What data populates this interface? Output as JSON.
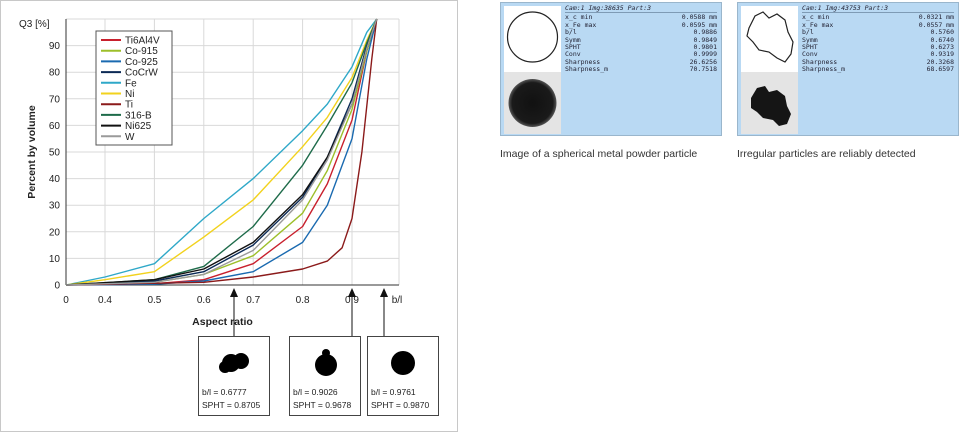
{
  "chart_data": {
    "type": "line",
    "title": "",
    "ylabel": "Percent by volume",
    "y_unit": "Q3 [%]",
    "xlabel": "Aspect ratio",
    "x_end_label": "b/l",
    "xlim": [
      0,
      0.95
    ],
    "ylim": [
      0,
      100
    ],
    "xticks": [
      "0",
      "0.4",
      "0.5",
      "0.6",
      "0.7",
      "0.8",
      "0.9"
    ],
    "yticks": [
      "0",
      "10",
      "20",
      "30",
      "40",
      "50",
      "60",
      "70",
      "80",
      "90"
    ],
    "grid": true,
    "legend_position": "top-left",
    "series": [
      {
        "name": "Ti6Al4V",
        "color": "#c8202d",
        "points": [
          [
            0,
            0
          ],
          [
            0.5,
            0.5
          ],
          [
            0.6,
            2
          ],
          [
            0.7,
            8
          ],
          [
            0.8,
            22
          ],
          [
            0.85,
            38
          ],
          [
            0.9,
            62
          ],
          [
            0.93,
            88
          ],
          [
            0.95,
            100
          ]
        ]
      },
      {
        "name": "Co-915",
        "color": "#9dbf2a",
        "points": [
          [
            0,
            0
          ],
          [
            0.5,
            1
          ],
          [
            0.6,
            4
          ],
          [
            0.7,
            11
          ],
          [
            0.8,
            27
          ],
          [
            0.85,
            43
          ],
          [
            0.9,
            66
          ],
          [
            0.93,
            88
          ],
          [
            0.95,
            100
          ]
        ]
      },
      {
        "name": "Co-925",
        "color": "#1a6ab0",
        "points": [
          [
            0,
            0
          ],
          [
            0.5,
            0.3
          ],
          [
            0.6,
            1.5
          ],
          [
            0.7,
            5
          ],
          [
            0.8,
            16
          ],
          [
            0.85,
            30
          ],
          [
            0.9,
            55
          ],
          [
            0.93,
            85
          ],
          [
            0.95,
            100
          ]
        ]
      },
      {
        "name": "CoCrW",
        "color": "#0c2a55",
        "points": [
          [
            0,
            0
          ],
          [
            0.5,
            1.5
          ],
          [
            0.6,
            5
          ],
          [
            0.7,
            15
          ],
          [
            0.8,
            33
          ],
          [
            0.85,
            48
          ],
          [
            0.9,
            70
          ],
          [
            0.93,
            90
          ],
          [
            0.95,
            100
          ]
        ]
      },
      {
        "name": "Fe",
        "color": "#2fa8c8",
        "points": [
          [
            0,
            0
          ],
          [
            0.4,
            3
          ],
          [
            0.5,
            8
          ],
          [
            0.6,
            25
          ],
          [
            0.7,
            40
          ],
          [
            0.8,
            58
          ],
          [
            0.85,
            68
          ],
          [
            0.9,
            82
          ],
          [
            0.93,
            95
          ],
          [
            0.95,
            100
          ]
        ]
      },
      {
        "name": "Ni",
        "color": "#f2d21d",
        "points": [
          [
            0,
            0
          ],
          [
            0.4,
            2
          ],
          [
            0.5,
            5
          ],
          [
            0.6,
            18
          ],
          [
            0.7,
            32
          ],
          [
            0.8,
            52
          ],
          [
            0.85,
            63
          ],
          [
            0.9,
            78
          ],
          [
            0.93,
            92
          ],
          [
            0.95,
            100
          ]
        ]
      },
      {
        "name": "Ti",
        "color": "#8b1a1a",
        "points": [
          [
            0,
            0
          ],
          [
            0.6,
            1
          ],
          [
            0.7,
            3
          ],
          [
            0.8,
            6
          ],
          [
            0.85,
            9
          ],
          [
            0.88,
            14
          ],
          [
            0.9,
            25
          ],
          [
            0.92,
            50
          ],
          [
            0.94,
            85
          ],
          [
            0.95,
            100
          ]
        ]
      },
      {
        "name": "316-B",
        "color": "#1e6b4a",
        "points": [
          [
            0,
            0
          ],
          [
            0.5,
            2
          ],
          [
            0.6,
            7
          ],
          [
            0.7,
            22
          ],
          [
            0.8,
            45
          ],
          [
            0.85,
            60
          ],
          [
            0.9,
            76
          ],
          [
            0.93,
            91
          ],
          [
            0.95,
            100
          ]
        ]
      },
      {
        "name": "Ni625",
        "color": "#111111",
        "points": [
          [
            0,
            0
          ],
          [
            0.5,
            2
          ],
          [
            0.6,
            6
          ],
          [
            0.7,
            16
          ],
          [
            0.8,
            34
          ],
          [
            0.85,
            48
          ],
          [
            0.9,
            68
          ],
          [
            0.93,
            89
          ],
          [
            0.95,
            100
          ]
        ]
      },
      {
        "name": "W",
        "color": "#9a9a9a",
        "points": [
          [
            0,
            0
          ],
          [
            0.5,
            1
          ],
          [
            0.6,
            4
          ],
          [
            0.7,
            13
          ],
          [
            0.8,
            32
          ],
          [
            0.85,
            47
          ],
          [
            0.9,
            68
          ],
          [
            0.93,
            89
          ],
          [
            0.95,
            100
          ]
        ]
      }
    ],
    "annotations": [
      {
        "x": 0.677,
        "lines": [
          "b/l = 0.6777",
          "SPHT = 0.8705"
        ]
      },
      {
        "x": 0.9026,
        "lines": [
          "b/l = 0.9026",
          "SPHT = 0.9678"
        ]
      },
      {
        "x": 0.9761,
        "lines": [
          "b/l = 0.9761",
          "SPHT = 0.9870"
        ]
      }
    ]
  },
  "panels": [
    {
      "header": "Cam:1 Img:38635 Part:3",
      "rows": [
        [
          "x_c min",
          "0.0588 mm"
        ],
        [
          "x_Fe max",
          "0.0595 mm"
        ],
        [
          "b/l",
          "0.9886"
        ],
        [
          "Symm",
          "0.9849"
        ],
        [
          "SPHT",
          "0.9801"
        ],
        [
          "Conv",
          "0.9999"
        ],
        [
          "Sharpness",
          "26.6256"
        ],
        [
          "Sharpness_m",
          "70.7518"
        ]
      ],
      "caption": "Image of a spherical metal powder particle"
    },
    {
      "header": "Cam:1 Img:43753 Part:3",
      "rows": [
        [
          "x_c min",
          "0.0321 mm"
        ],
        [
          "x_Fe max",
          "0.0557 mm"
        ],
        [
          "b/l",
          "0.5760"
        ],
        [
          "Symm",
          "0.6740"
        ],
        [
          "SPHT",
          "0.6273"
        ],
        [
          "Conv",
          "0.9319"
        ],
        [
          "Sharpness",
          "20.3268"
        ],
        [
          "Sharpness_m",
          "68.6597"
        ]
      ],
      "caption": "Irregular particles are reliably detected"
    }
  ]
}
